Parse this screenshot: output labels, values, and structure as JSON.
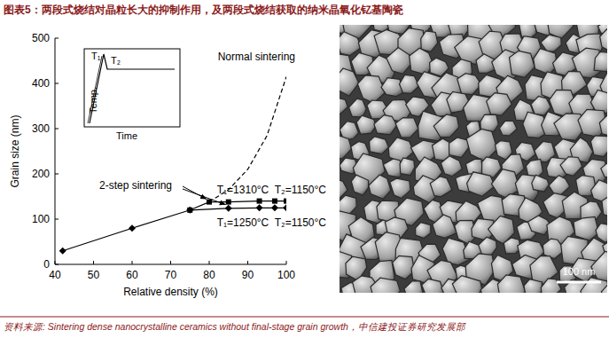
{
  "title": "图表5：两段式烧结对晶粒长大的抑制作用，及两段式烧结获取的纳米晶氧化钇基陶瓷",
  "source": "资料来源: Sintering dense nanocrystalline ceramics without final-stage grain growth，中信建投证券研究发展部",
  "image": {
    "scale_bar_label": "100 nm"
  },
  "chart_data": {
    "type": "line",
    "x_label": "Relative density (%)",
    "y_label": "Grain size (nm)",
    "xlim": [
      40,
      100
    ],
    "ylim": [
      0,
      500
    ],
    "xticks": [
      40,
      50,
      60,
      70,
      80,
      90,
      100
    ],
    "yticks": [
      0,
      100,
      200,
      300,
      400,
      500
    ],
    "grid": false,
    "series": [
      {
        "name": "T₁=1310°C  T₂=1150°C",
        "color": "#000000",
        "marker": "square",
        "line_style": "solid",
        "x": [
          75,
          80,
          85,
          93,
          97,
          100
        ],
        "values": [
          120,
          138,
          138,
          140,
          140,
          140
        ]
      },
      {
        "name": "T₁=1250°C  T₂=1150°C",
        "color": "#000000",
        "marker": "diamond",
        "line_style": "solid",
        "x": [
          42,
          60,
          75,
          85,
          93,
          97,
          100
        ],
        "values": [
          30,
          80,
          120,
          124,
          125,
          125,
          125
        ]
      },
      {
        "name": "Normal sintering",
        "color": "#000000",
        "marker": "none",
        "line_style": "dashed",
        "x": [
          80,
          85,
          90,
          95,
          100
        ],
        "values": [
          138,
          165,
          210,
          285,
          415
        ]
      }
    ],
    "annotations": [
      "2-step sintering"
    ],
    "inset": {
      "x_label": "Time",
      "y_label": "Temp.",
      "labels": [
        "T₁",
        "T₂"
      ]
    }
  }
}
